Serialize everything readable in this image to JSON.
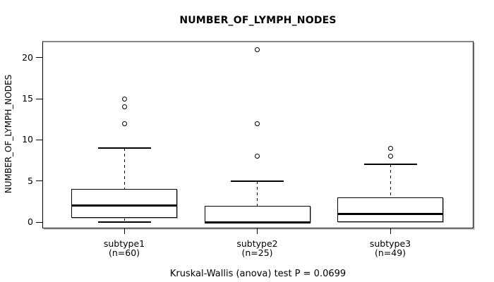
{
  "chart_data": {
    "type": "boxplot",
    "title": "NUMBER_OF_LYMPH_NODES",
    "ylabel": "NUMBER_OF_LYMPH_NODES",
    "caption": "Kruskal-Wallis (anova) test P = 0.0699",
    "yticks": [
      0,
      5,
      10,
      15,
      20
    ],
    "ylim": [
      0,
      21
    ],
    "grid": false,
    "legend": "none",
    "groups": [
      {
        "label": "subtype1",
        "sublabel": "(n=60)",
        "whisker_low": 0,
        "q1": 0.5,
        "median": 2,
        "q3": 4,
        "whisker_high": 9,
        "outliers": [
          12,
          14,
          15
        ]
      },
      {
        "label": "subtype2",
        "sublabel": "(n=25)",
        "whisker_low": 0,
        "q1": 0,
        "median": 0,
        "q3": 2,
        "whisker_high": 5,
        "outliers": [
          8,
          12,
          21
        ]
      },
      {
        "label": "subtype3",
        "sublabel": "(n=49)",
        "whisker_low": 0,
        "q1": 0,
        "median": 1,
        "q3": 3,
        "whisker_high": 7,
        "outliers": [
          8,
          9
        ]
      }
    ],
    "colors": {
      "line": "#000000",
      "background": "#ffffff",
      "box_fill": "#ffffff",
      "frame_shadow": "#c6c6c6"
    }
  }
}
